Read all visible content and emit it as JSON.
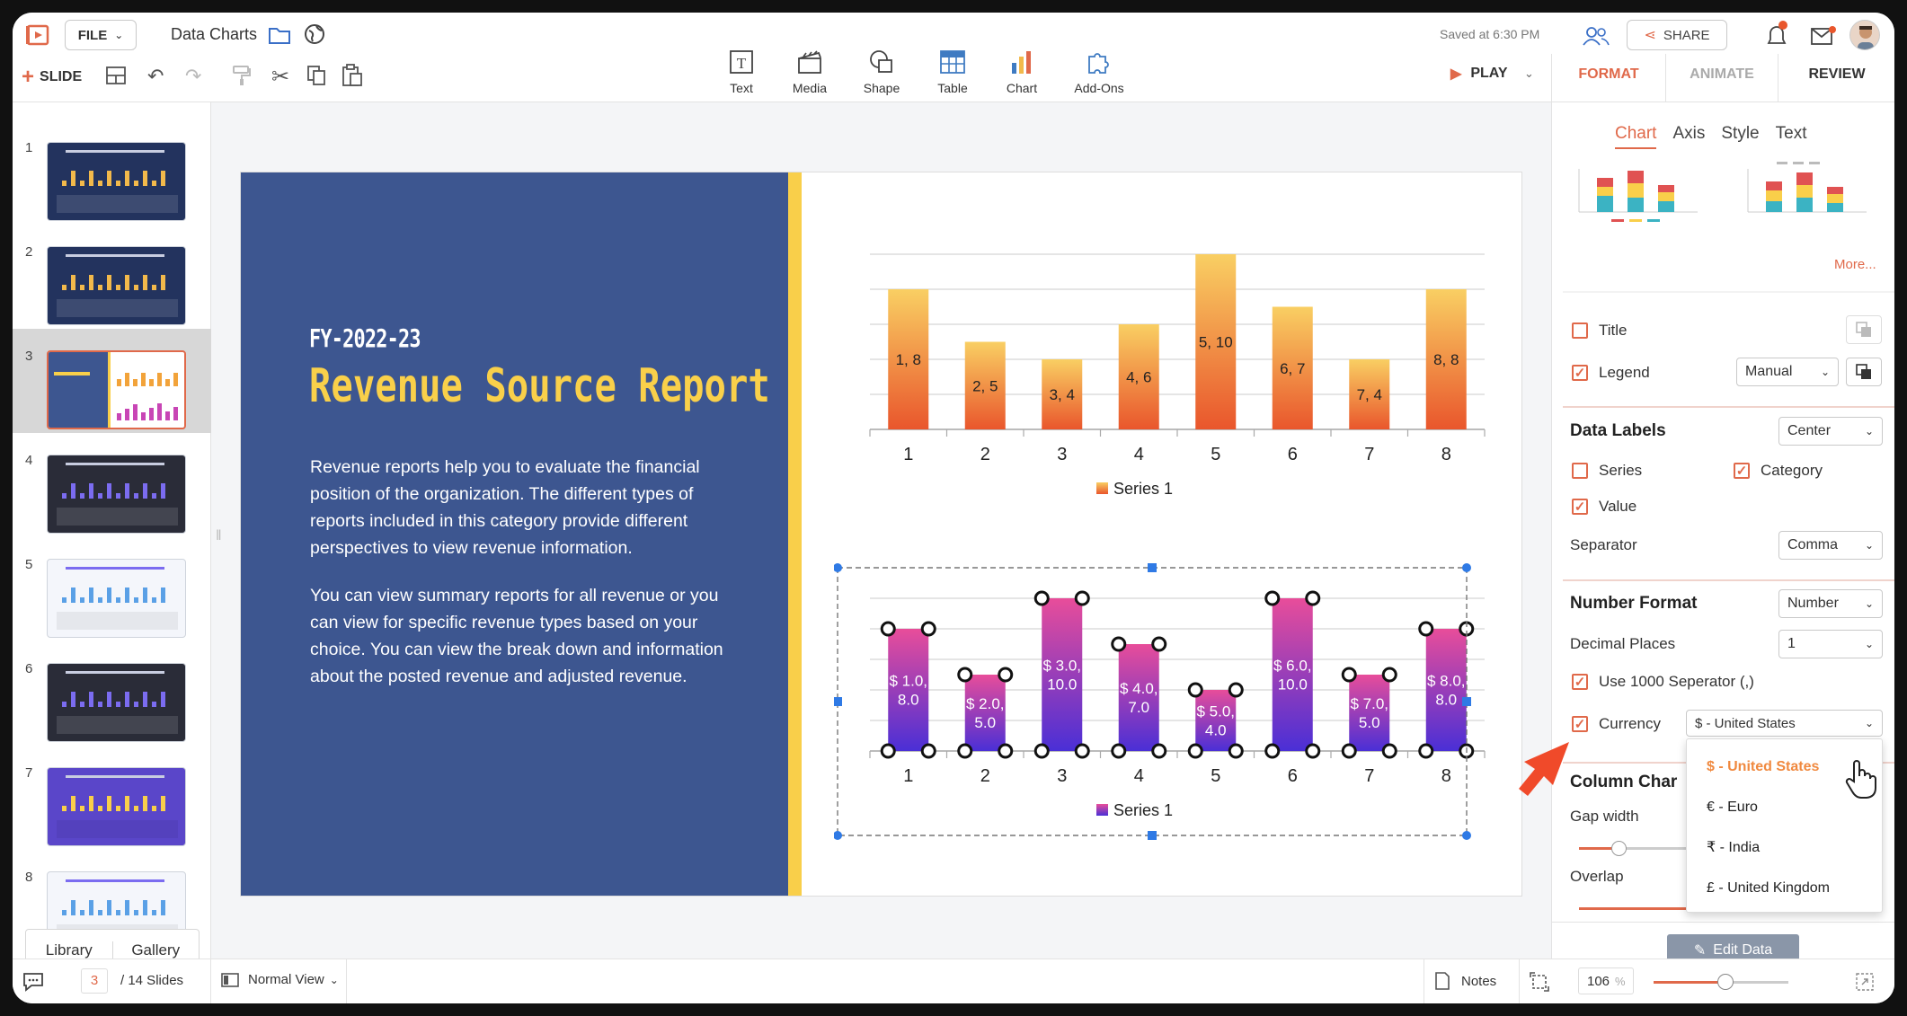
{
  "app": {
    "file_label": "FILE",
    "document_title": "Data Charts",
    "saved_status": "Saved at 6:30 PM",
    "share_label": "SHARE",
    "slide_label": "SLIDE",
    "play_label": "PLAY"
  },
  "insert_toolbar": [
    {
      "label": "Text",
      "icon": "text-box-icon"
    },
    {
      "label": "Media",
      "icon": "clapperboard-icon"
    },
    {
      "label": "Shape",
      "icon": "shape-icon"
    },
    {
      "label": "Table",
      "icon": "table-icon"
    },
    {
      "label": "Chart",
      "icon": "bar-chart-icon"
    },
    {
      "label": "Add-Ons",
      "icon": "puzzle-icon"
    }
  ],
  "panel_tabs": {
    "format": "FORMAT",
    "animate": "ANIMATE",
    "review": "REVIEW"
  },
  "chart_tabs": {
    "chart": "Chart",
    "axis": "Axis",
    "style": "Style",
    "text": "Text"
  },
  "format_panel": {
    "more_link": "More...",
    "title_label": "Title",
    "legend_label": "Legend",
    "legend_value": "Manual",
    "data_labels_title": "Data Labels",
    "data_labels_position": "Center",
    "series_label": "Series",
    "category_label": "Category",
    "value_label": "Value",
    "separator_label": "Separator",
    "separator_value": "Comma",
    "number_format_title": "Number Format",
    "number_format_value": "Number",
    "decimal_places_label": "Decimal Places",
    "decimal_places_value": "1",
    "use1000_label": "Use 1000 Seperator (,)",
    "currency_label": "Currency",
    "currency_value": "$ - United States",
    "currency_options": [
      "$ - United States",
      "€ - Euro",
      "₹ - India",
      "£ - United Kingdom"
    ],
    "column_chart_title": "Column Char",
    "gap_width_label": "Gap width",
    "overlap_label": "Overlap",
    "overlap_value": "100",
    "edit_data_label": "Edit Data",
    "checkbox_state": {
      "title": false,
      "legend": true,
      "series": false,
      "category": true,
      "value": true,
      "use1000": true,
      "currency": true
    }
  },
  "slides": [
    {
      "number": "1",
      "theme": "navy"
    },
    {
      "number": "2",
      "theme": "navy"
    },
    {
      "number": "3",
      "theme": "selected"
    },
    {
      "number": "4",
      "theme": "dark"
    },
    {
      "number": "5",
      "theme": "light"
    },
    {
      "number": "6",
      "theme": "dark"
    },
    {
      "number": "7",
      "theme": "purple"
    },
    {
      "number": "8",
      "theme": "light"
    }
  ],
  "side_tabs": {
    "library": "Library",
    "gallery": "Gallery"
  },
  "slide_content": {
    "fy": "FY-2022-23",
    "title": "Revenue Source Report",
    "paragraph1": "Revenue reports help you to evaluate the financial position of the organization. The different types of reports included in this category provide different perspectives to view revenue information.",
    "paragraph2": "You can view summary reports for all revenue or you can view for specific revenue types based on your choice. You can view the break down and information about the posted revenue and adjusted revenue."
  },
  "chart_data": [
    {
      "type": "bar",
      "categories": [
        "1",
        "2",
        "3",
        "4",
        "5",
        "6",
        "7",
        "8"
      ],
      "series": [
        {
          "name": "Series 1",
          "values": [
            8,
            5,
            4,
            6,
            10,
            7,
            4,
            8
          ]
        }
      ],
      "data_labels": [
        "1, 8",
        "2, 5",
        "3, 4",
        "4, 6",
        "5, 10",
        "6, 7",
        "7, 4",
        "8, 8"
      ],
      "ylim": [
        0,
        10
      ],
      "grid": true,
      "legend_position": "bottom",
      "colors": [
        "#f9cf63",
        "#e9562c"
      ]
    },
    {
      "type": "bar",
      "categories": [
        "1",
        "2",
        "3",
        "4",
        "5",
        "6",
        "7",
        "8"
      ],
      "series": [
        {
          "name": "Series 1",
          "values": [
            8.0,
            5.0,
            10.0,
            7.0,
            4.0,
            10.0,
            5.0,
            8.0
          ]
        }
      ],
      "data_labels": [
        "$ 1.0, 8.0",
        "$ 2.0, 5.0",
        "$ 3.0, 10.0",
        "$ 4.0, 7.0",
        "$ 5.0, 4.0",
        "$ 6.0, 10.0",
        "$ 7.0, 5.0",
        "$ 8.0, 8.0"
      ],
      "ylim": [
        0,
        10
      ],
      "grid": true,
      "legend_position": "bottom",
      "colors": [
        "#e84d9a",
        "#4a2fd6"
      ]
    }
  ],
  "status_bar": {
    "current_slide": "3",
    "total_slides": "/ 14 Slides",
    "view_mode": "Normal View",
    "notes_label": "Notes",
    "zoom_value": "106",
    "zoom_unit": "%",
    "zoom_level": 0.53
  },
  "colors": {
    "accent": "#e0694a",
    "slide_bg": "#3d5690",
    "slide_title": "#f9d04a",
    "edit_button": "#8a96a8"
  }
}
